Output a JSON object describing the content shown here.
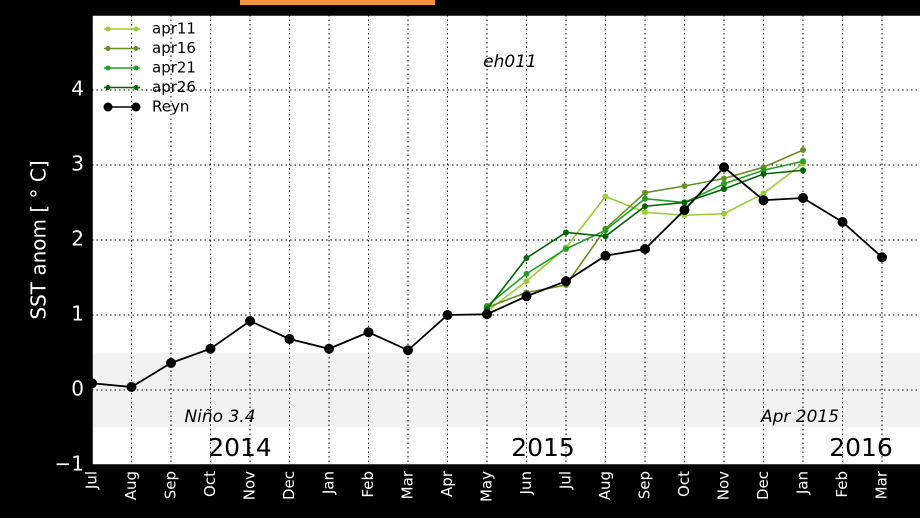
{
  "chart_data": {
    "type": "line",
    "ylabel": "SST anom [ ° C]",
    "annotations": [
      "eh011",
      "Niño 3.4",
      "Apr 2015"
    ],
    "years": [
      "2014",
      "2015",
      "2016"
    ],
    "categories": [
      "Jul",
      "Aug",
      "Sep",
      "Oct",
      "Nov",
      "Dec",
      "Jan",
      "Feb",
      "Mar",
      "Apr",
      "May",
      "Jun",
      "Jul",
      "Aug",
      "Sep",
      "Oct",
      "Nov",
      "Dec",
      "Jan",
      "Feb",
      "Mar"
    ],
    "series": [
      {
        "name": "apr11",
        "color": "#9acd32",
        "values": [
          null,
          null,
          null,
          null,
          null,
          null,
          null,
          null,
          null,
          null,
          1.05,
          1.45,
          1.9,
          2.58,
          2.37,
          2.33,
          2.35,
          2.62,
          3.02,
          null,
          null
        ]
      },
      {
        "name": "apr16",
        "color": "#6b8e23",
        "values": [
          null,
          null,
          null,
          null,
          null,
          null,
          null,
          null,
          null,
          null,
          1.1,
          1.3,
          1.4,
          2.15,
          2.63,
          2.72,
          2.82,
          2.97,
          3.2,
          null,
          null
        ]
      },
      {
        "name": "apr21",
        "color": "#22a022",
        "values": [
          null,
          null,
          null,
          null,
          null,
          null,
          null,
          null,
          null,
          null,
          1.12,
          1.55,
          1.88,
          2.13,
          2.55,
          2.5,
          2.75,
          2.93,
          3.05,
          null,
          null
        ]
      },
      {
        "name": "apr26",
        "color": "#006400",
        "values": [
          null,
          null,
          null,
          null,
          null,
          null,
          null,
          null,
          null,
          null,
          1.08,
          1.76,
          2.1,
          2.05,
          2.45,
          2.5,
          2.68,
          2.88,
          2.93,
          null,
          null
        ]
      },
      {
        "name": "Reyn",
        "color": "#000000",
        "values": [
          0.09,
          0.04,
          0.36,
          0.55,
          0.92,
          0.68,
          0.55,
          0.77,
          0.53,
          1.0,
          1.01,
          1.25,
          1.45,
          1.79,
          1.88,
          2.4,
          2.97,
          2.53,
          2.56,
          2.24,
          1.77
        ]
      }
    ],
    "band": [
      -0.5,
      0.5
    ],
    "ylim": [
      -1,
      5
    ],
    "yticks": [
      {
        "value": -1,
        "label": "−1"
      },
      0,
      1,
      2,
      3,
      4
    ],
    "grid": true,
    "legend": "upper left"
  }
}
